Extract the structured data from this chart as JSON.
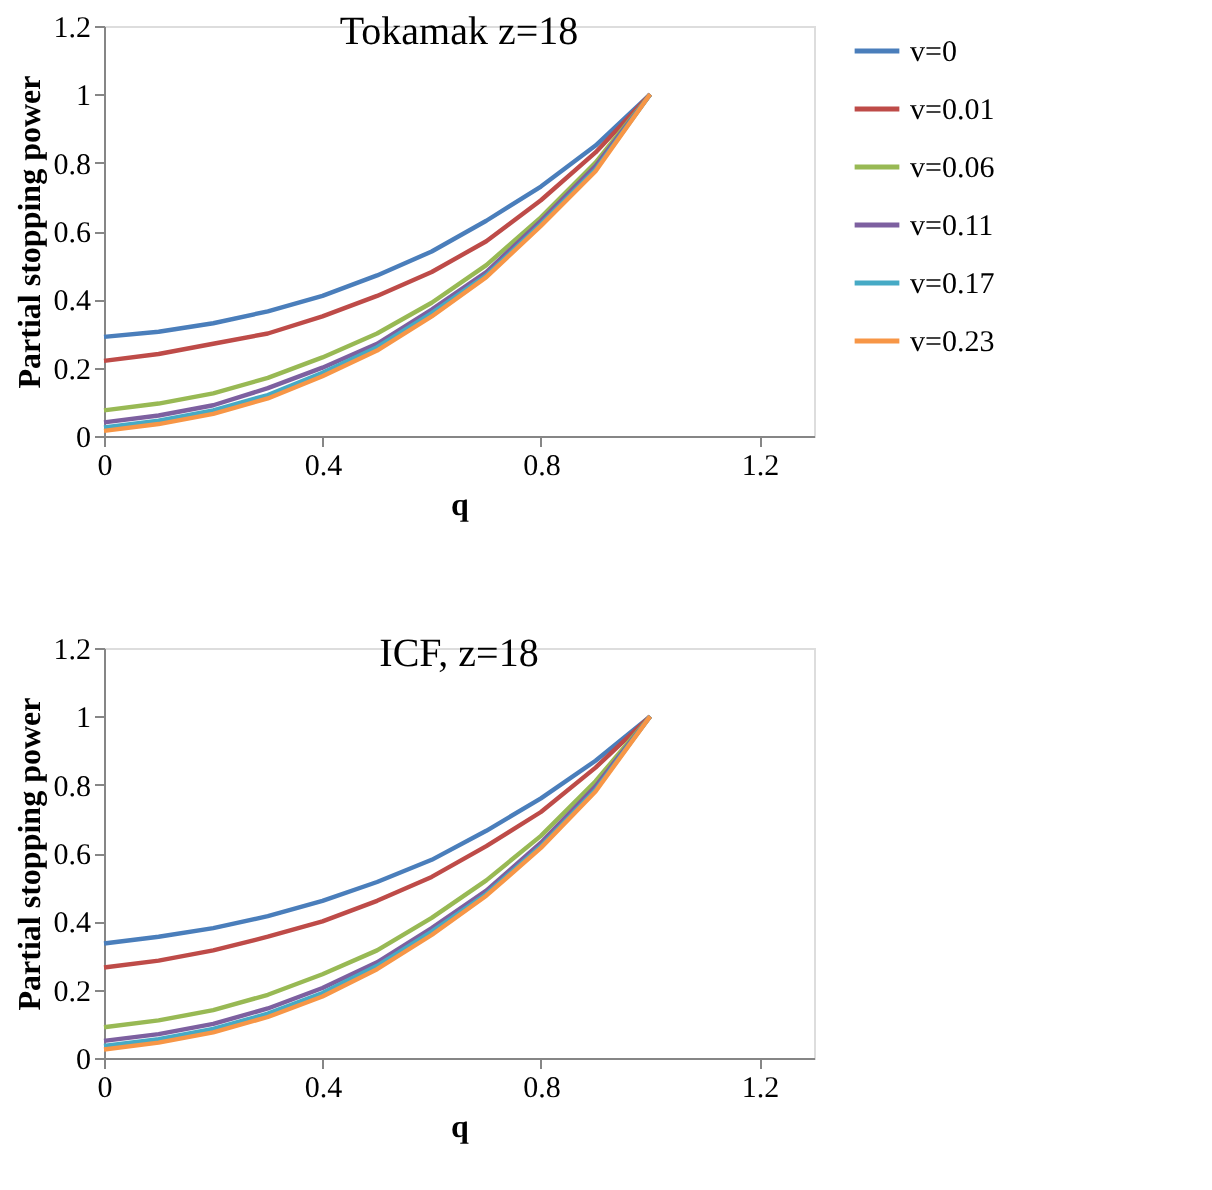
{
  "chart_data": [
    {
      "type": "line",
      "title": "Tokamak z=18",
      "xlabel": "q",
      "ylabel": "Partial stopping power",
      "x": [
        0,
        0.1,
        0.2,
        0.3,
        0.4,
        0.5,
        0.6,
        0.7,
        0.8,
        0.9,
        1.0
      ],
      "xlim": [
        0,
        1.3
      ],
      "xticks": [
        0,
        0.4,
        0.8,
        1.2
      ],
      "ylim": [
        0,
        1.2
      ],
      "yticks": [
        0,
        0.2,
        0.4,
        0.6,
        0.8,
        1,
        1.2
      ],
      "grid": false,
      "legend": "right",
      "marker": "none",
      "line_style": "solid",
      "series": [
        {
          "name": "v=0",
          "color": "#4a7ebb",
          "values": [
            0.29,
            0.305,
            0.33,
            0.365,
            0.41,
            0.47,
            0.54,
            0.63,
            0.73,
            0.85,
            1
          ]
        },
        {
          "name": "v=0.01",
          "color": "#be4b48",
          "values": [
            0.22,
            0.24,
            0.27,
            0.3,
            0.35,
            0.41,
            0.48,
            0.57,
            0.69,
            0.83,
            1
          ]
        },
        {
          "name": "v=0.06",
          "color": "#98b954",
          "values": [
            0.075,
            0.095,
            0.125,
            0.17,
            0.23,
            0.3,
            0.39,
            0.5,
            0.64,
            0.8,
            1
          ]
        },
        {
          "name": "v=0.11",
          "color": "#7d60a0",
          "values": [
            0.04,
            0.06,
            0.09,
            0.14,
            0.2,
            0.27,
            0.37,
            0.48,
            0.63,
            0.79,
            1
          ]
        },
        {
          "name": "v=0.17",
          "color": "#46aac5",
          "values": [
            0.025,
            0.045,
            0.075,
            0.12,
            0.185,
            0.26,
            0.36,
            0.47,
            0.62,
            0.78,
            1
          ]
        },
        {
          "name": "v=0.23",
          "color": "#f79646",
          "values": [
            0.015,
            0.035,
            0.065,
            0.11,
            0.175,
            0.25,
            0.35,
            0.465,
            0.615,
            0.775,
            1
          ]
        }
      ]
    },
    {
      "type": "line",
      "title": "ICF, z=18",
      "xlabel": "q",
      "ylabel": "Partial stopping power",
      "x": [
        0,
        0.1,
        0.2,
        0.3,
        0.4,
        0.5,
        0.6,
        0.7,
        0.8,
        0.9,
        1.0
      ],
      "xlim": [
        0,
        1.3
      ],
      "xticks": [
        0,
        0.4,
        0.8,
        1.2
      ],
      "ylim": [
        0,
        1.2
      ],
      "yticks": [
        0,
        0.2,
        0.4,
        0.6,
        0.8,
        1,
        1.2
      ],
      "grid": false,
      "legend": "right",
      "marker": "none",
      "line_style": "solid",
      "series": [
        {
          "name": "v=0",
          "color": "#4a7ebb",
          "values": [
            0.335,
            0.355,
            0.38,
            0.415,
            0.46,
            0.515,
            0.58,
            0.665,
            0.76,
            0.87,
            1
          ]
        },
        {
          "name": "v=0.01",
          "color": "#be4b48",
          "values": [
            0.265,
            0.285,
            0.315,
            0.355,
            0.4,
            0.46,
            0.53,
            0.62,
            0.72,
            0.85,
            1
          ]
        },
        {
          "name": "v=0.06",
          "color": "#98b954",
          "values": [
            0.09,
            0.11,
            0.14,
            0.185,
            0.245,
            0.315,
            0.41,
            0.52,
            0.65,
            0.81,
            1
          ]
        },
        {
          "name": "v=0.11",
          "color": "#7d60a0",
          "values": [
            0.05,
            0.07,
            0.1,
            0.145,
            0.205,
            0.28,
            0.38,
            0.49,
            0.63,
            0.795,
            1
          ]
        },
        {
          "name": "v=0.17",
          "color": "#46aac5",
          "values": [
            0.035,
            0.055,
            0.085,
            0.13,
            0.19,
            0.27,
            0.37,
            0.48,
            0.62,
            0.785,
            1
          ]
        },
        {
          "name": "v=0.23",
          "color": "#f79646",
          "values": [
            0.025,
            0.045,
            0.075,
            0.12,
            0.18,
            0.26,
            0.36,
            0.475,
            0.615,
            0.78,
            1
          ]
        }
      ]
    }
  ]
}
